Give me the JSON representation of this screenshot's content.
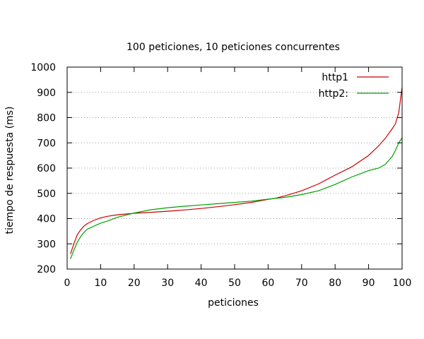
{
  "chart_data": {
    "type": "line",
    "title": "100 peticiones, 10 peticiones concurrentes",
    "xlabel": "peticiones",
    "ylabel": "tiempo de respuesta (ms)",
    "xlim": [
      0,
      100
    ],
    "ylim": [
      200,
      1000
    ],
    "xticks": [
      0,
      10,
      20,
      30,
      40,
      50,
      60,
      70,
      80,
      90,
      100
    ],
    "yticks": [
      200,
      300,
      400,
      500,
      600,
      700,
      800,
      900,
      1000
    ],
    "grid": "horizontal dotted",
    "legend_position": "top-right",
    "series": [
      {
        "name": "http1",
        "color": "#cc0000",
        "x": [
          1,
          2,
          3,
          4,
          5,
          6,
          8,
          10,
          12,
          15,
          20,
          25,
          30,
          35,
          40,
          45,
          50,
          55,
          60,
          62,
          65,
          70,
          75,
          80,
          85,
          90,
          93,
          95,
          97,
          98,
          99,
          100
        ],
        "y": [
          260,
          300,
          335,
          355,
          370,
          380,
          393,
          403,
          409,
          415,
          421,
          425,
          429,
          434,
          440,
          447,
          455,
          464,
          476,
          480,
          490,
          510,
          537,
          572,
          605,
          650,
          688,
          718,
          755,
          775,
          820,
          920
        ]
      },
      {
        "name": "http2:",
        "color": "#00a000",
        "x": [
          1,
          2,
          3,
          4,
          5,
          6,
          8,
          10,
          12,
          15,
          20,
          25,
          30,
          35,
          40,
          45,
          50,
          55,
          60,
          65,
          70,
          75,
          80,
          85,
          88,
          90,
          93,
          95,
          97,
          98,
          99,
          100
        ],
        "y": [
          240,
          275,
          305,
          328,
          345,
          358,
          370,
          382,
          390,
          405,
          422,
          435,
          443,
          449,
          454,
          459,
          464,
          469,
          477,
          484,
          495,
          510,
          535,
          565,
          580,
          590,
          600,
          615,
          645,
          670,
          700,
          720
        ]
      }
    ]
  }
}
